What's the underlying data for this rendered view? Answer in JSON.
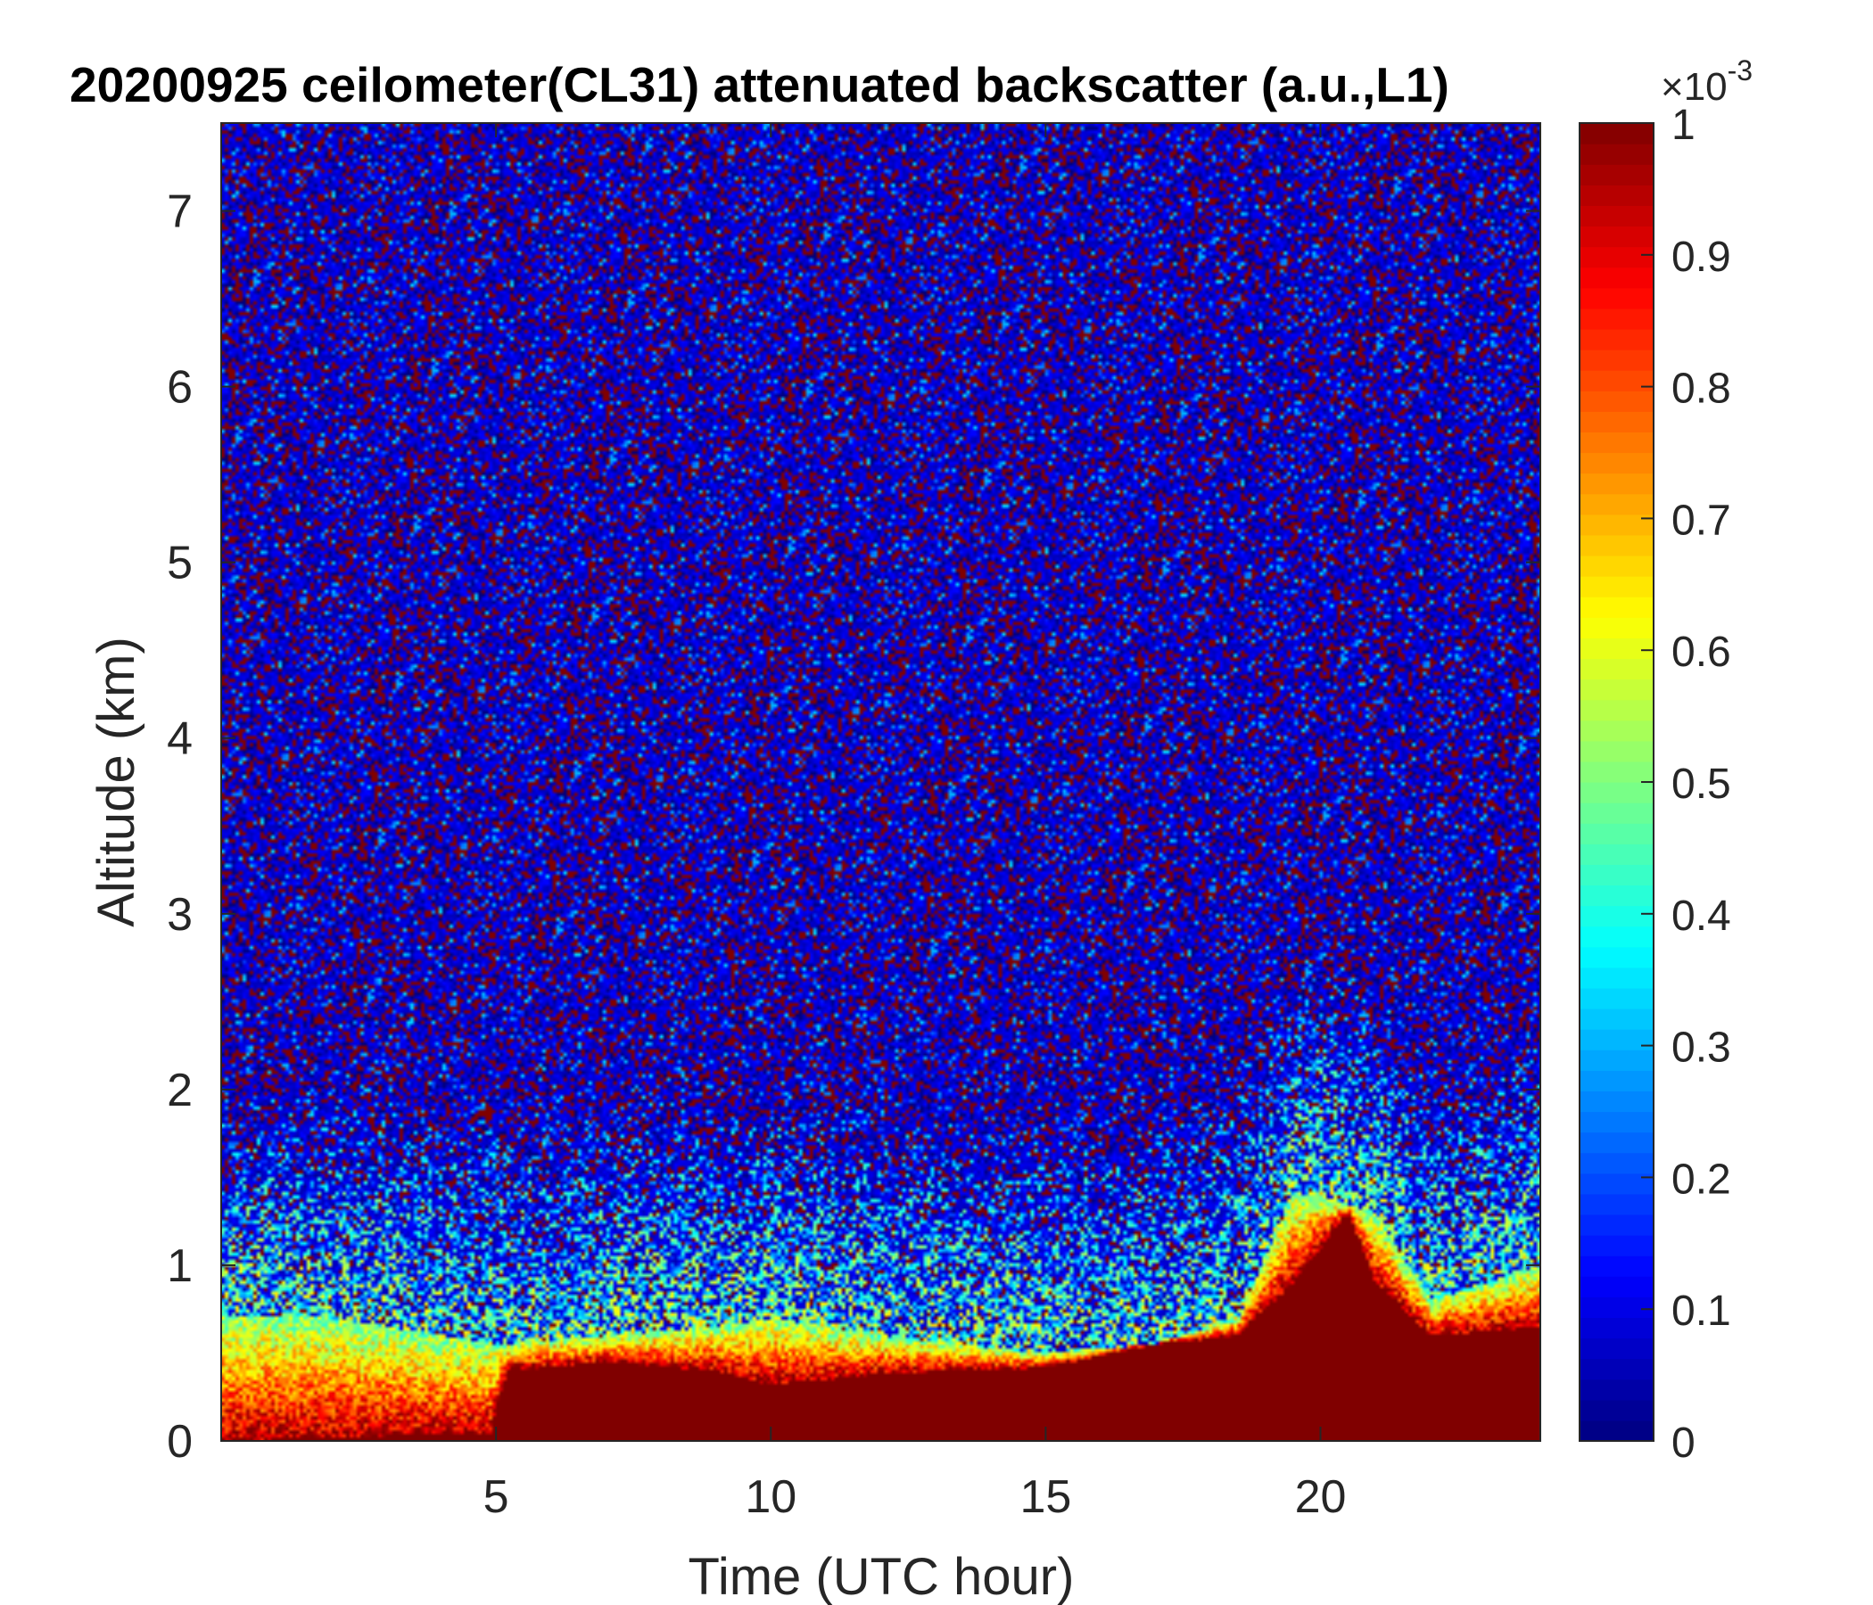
{
  "chart_data": {
    "type": "heatmap",
    "title": "20200925 ceilometer(CL31) attenuated backscatter (a.u.,L1)",
    "xlabel": "Time (UTC hour)",
    "ylabel": "Altitude (km)",
    "xlim": [
      0,
      24
    ],
    "ylim": [
      0,
      7.5
    ],
    "x_ticks": [
      5,
      10,
      15,
      20
    ],
    "y_ticks": [
      0,
      1,
      2,
      3,
      4,
      5,
      6,
      7
    ],
    "colormap": "jet",
    "colorbar": {
      "range": [
        0,
        0.001
      ],
      "multiplier_label": "×10",
      "multiplier_exponent": "-3",
      "ticks": [
        0,
        0.1,
        0.2,
        0.3,
        0.4,
        0.5,
        0.6,
        0.7,
        0.8,
        0.9,
        1
      ],
      "tick_labels": [
        "0",
        "0.1",
        "0.2",
        "0.3",
        "0.4",
        "0.5",
        "0.6",
        "0.7",
        "0.8",
        "0.9",
        "1"
      ]
    },
    "features": {
      "noise_background": "mixed dark blue / dark red speckle above ~2 km",
      "near_surface_layer_top_km": [
        [
          0,
          0.72
        ],
        [
          2,
          0.7
        ],
        [
          3,
          0.65
        ],
        [
          5,
          0.55
        ],
        [
          7,
          0.6
        ],
        [
          9,
          0.65
        ],
        [
          10,
          0.7
        ],
        [
          12,
          0.6
        ],
        [
          15,
          0.5
        ],
        [
          17,
          0.55
        ],
        [
          18.5,
          0.7
        ],
        [
          19.5,
          1.4
        ],
        [
          20,
          1.4
        ],
        [
          21,
          1.3
        ],
        [
          22,
          0.8
        ],
        [
          23,
          0.9
        ],
        [
          24,
          1.0
        ]
      ],
      "saturated_layer_top_km": [
        [
          0,
          0.0
        ],
        [
          4.9,
          0.05
        ],
        [
          5.2,
          0.4
        ],
        [
          7,
          0.45
        ],
        [
          9,
          0.4
        ],
        [
          10,
          0.32
        ],
        [
          12,
          0.38
        ],
        [
          15,
          0.42
        ],
        [
          17,
          0.55
        ],
        [
          18.5,
          0.6
        ],
        [
          19.5,
          0.9
        ],
        [
          20.5,
          1.3
        ],
        [
          21,
          0.9
        ],
        [
          22,
          0.6
        ],
        [
          24,
          0.65
        ]
      ]
    }
  }
}
